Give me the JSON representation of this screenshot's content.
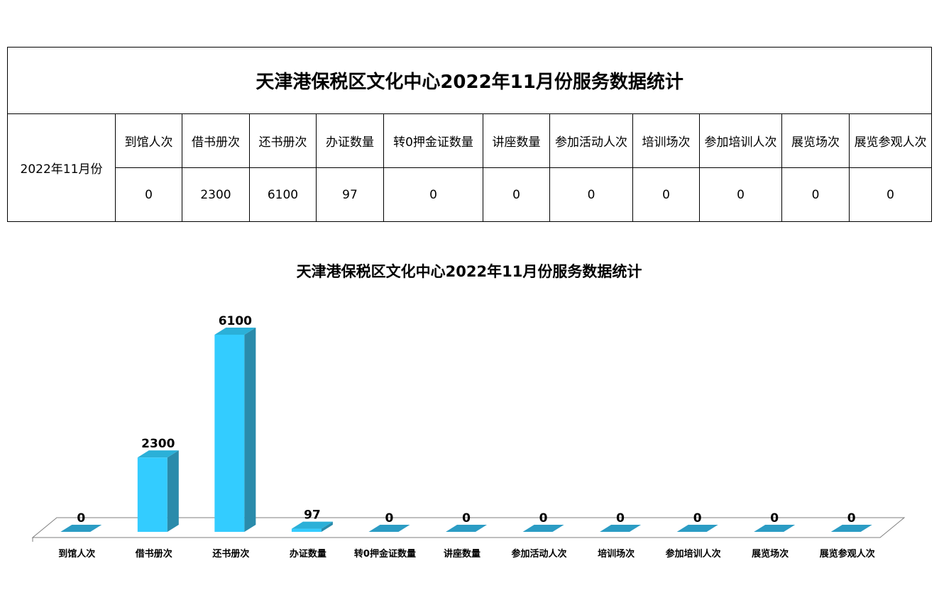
{
  "table": {
    "title": "天津港保税区文化中心2022年11月份服务数据统计",
    "period": "2022年11月份",
    "headers": [
      "到馆人次",
      "借书册次",
      "还书册次",
      "办证数量",
      "转0押金证数量",
      "讲座数量",
      "参加活动人次",
      "培训场次",
      "参加培训人次",
      "展览场次",
      "展览参观人次"
    ],
    "values": [
      "0",
      "2300",
      "6100",
      "97",
      "0",
      "0",
      "0",
      "0",
      "0",
      "0",
      "0"
    ]
  },
  "chart_data": {
    "type": "bar",
    "title": "天津港保税区文化中心2022年11月份服务数据统计",
    "categories": [
      "到馆人次",
      "借书册次",
      "还书册次",
      "办证数量",
      "转0押金证数量",
      "讲座数量",
      "参加活动人次",
      "培训场次",
      "参加培训人次",
      "展览场次",
      "展览参观人次"
    ],
    "values": [
      0,
      2300,
      6100,
      97,
      0,
      0,
      0,
      0,
      0,
      0,
      0
    ],
    "data_labels": [
      "0",
      "2300",
      "6100",
      "97",
      "0",
      "0",
      "0",
      "0",
      "0",
      "0",
      "0"
    ],
    "xlabel": "",
    "ylabel": "",
    "ylim": [
      0,
      6100
    ],
    "grid": false,
    "legend": "none",
    "three_d": true,
    "colors": {
      "front": "#33ccff",
      "side": "#2a8bab",
      "top": "#2bb0d8",
      "zero_cap": "#2b9cc4",
      "floor": "#7f7f7f"
    }
  }
}
